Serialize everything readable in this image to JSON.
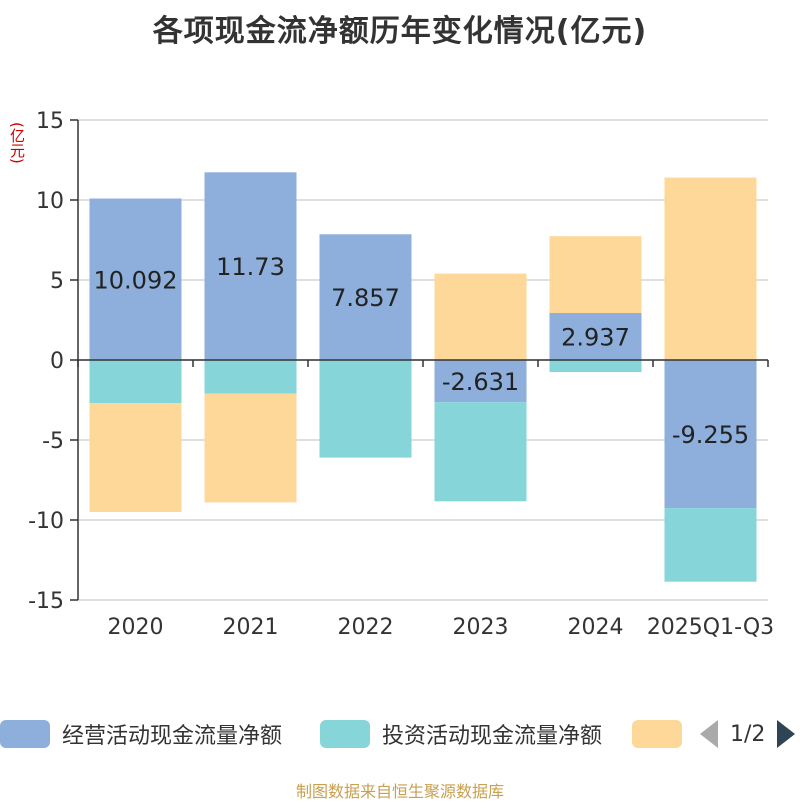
{
  "chart_data": {
    "type": "bar",
    "title": "各项现金流净额历年变化情况(亿元)",
    "ylabel": "(亿元)",
    "xlabel": "",
    "ylim": [
      -15,
      15
    ],
    "yticks": [
      15,
      10,
      5,
      0,
      -5,
      -10,
      -15
    ],
    "categories": [
      "2020",
      "2021",
      "2022",
      "2023",
      "2024",
      "2025Q1-Q3"
    ],
    "stacked": true,
    "series": [
      {
        "name": "经营活动现金流量净额",
        "color": "#8eaedb",
        "values": [
          10.092,
          11.73,
          7.857,
          -2.631,
          2.937,
          -9.255
        ],
        "labels": [
          "10.092",
          "11.73",
          "7.857",
          "-2.631",
          "2.937",
          "-9.255"
        ]
      },
      {
        "name": "投资活动现金流量净额",
        "color": "#86d5d8",
        "values": [
          -2.7,
          -2.1,
          -6.1,
          -6.2,
          -0.75,
          -4.6
        ]
      },
      {
        "name": "",
        "color": "#fdd898",
        "values": [
          -6.8,
          -6.8,
          0,
          5.4,
          4.8,
          11.4
        ]
      }
    ],
    "legend_page": "1/2",
    "source": "制图数据来自恒生聚源数据库"
  }
}
